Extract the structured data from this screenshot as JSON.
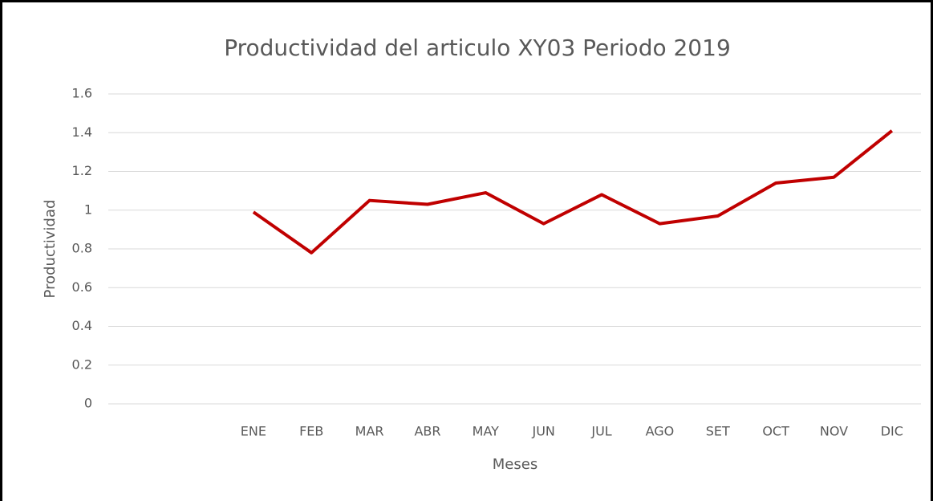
{
  "chart_data": {
    "type": "line",
    "title": "Productividad del articulo XY03 Periodo 2019",
    "x_label": "Meses",
    "y_label": "Productividad",
    "categories": [
      null,
      null,
      "ENE",
      "FEB",
      "MAR",
      "ABR",
      "MAY",
      "JUN",
      "JUL",
      "AGO",
      "SET",
      "OCT",
      "NOV",
      "DIC"
    ],
    "series": [
      {
        "name": "Productividad",
        "color": "#c00000",
        "values": [
          null,
          null,
          0.99,
          0.78,
          1.05,
          1.03,
          1.09,
          0.93,
          1.08,
          0.93,
          0.97,
          1.14,
          1.17,
          1.41
        ]
      }
    ],
    "ylim": [
      0,
      1.6
    ],
    "yticks": [
      0,
      0.2,
      0.4,
      0.6,
      0.8,
      1,
      1.2,
      1.4,
      1.6
    ],
    "grid": true
  }
}
